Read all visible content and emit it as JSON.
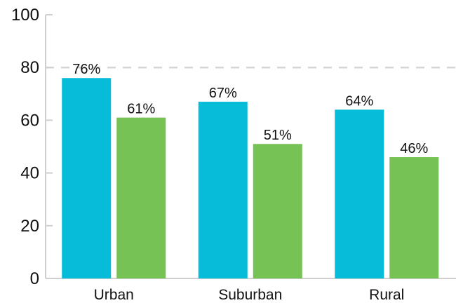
{
  "chart_data": {
    "type": "bar",
    "categories": [
      "Urban",
      "Suburban",
      "Rural"
    ],
    "series": [
      {
        "color": "#07bcd8",
        "values": [
          76,
          67,
          64
        ],
        "labels": [
          "76%",
          "67%",
          "64%"
        ]
      },
      {
        "color": "#76c255",
        "values": [
          61,
          51,
          46
        ],
        "labels": [
          "61%",
          "51%",
          "46%"
        ]
      }
    ],
    "ylim": [
      0,
      100
    ],
    "yticks": [
      0,
      20,
      40,
      60,
      80,
      100
    ],
    "reference_line": 80,
    "grid": false,
    "title": "",
    "xlabel": "",
    "ylabel": ""
  }
}
